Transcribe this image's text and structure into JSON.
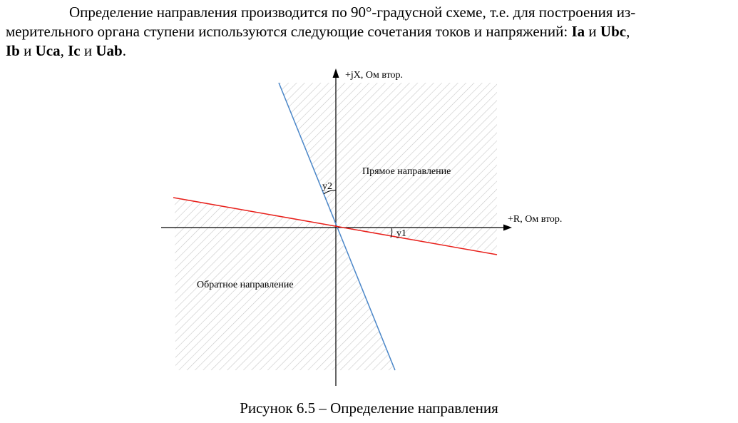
{
  "paragraph": {
    "line1": "Определение направления производится по 90°-градусной схеме, т.е. для построения из-",
    "line2_prefix": "мерительного органа ступени используются следующие сочетания токов и напряжений: ",
    "ia": "Ia",
    "and1": " и ",
    "ubc": "Ubc",
    "comma1": ",",
    "ib": "Ib",
    "and2": " и ",
    "uca": "Uca",
    "comma2": ", ",
    "ic": "Ic",
    "and3": " и ",
    "uab": "Uab",
    "period": "."
  },
  "figure": {
    "axis_y_label": "+jX, Ом втор.",
    "axis_x_label": "+R, Ом втор.",
    "forward_label": "Прямое направление",
    "reverse_label": "Обратное направление",
    "angle1_label": "y1",
    "angle2_label": "y2",
    "colors": {
      "line_red": "#e8201b",
      "line_blue": "#4a86c8",
      "hatch": "#c8c8c8",
      "axis": "#000000"
    }
  },
  "caption": "Рисунок 6.5 – Определение направления"
}
